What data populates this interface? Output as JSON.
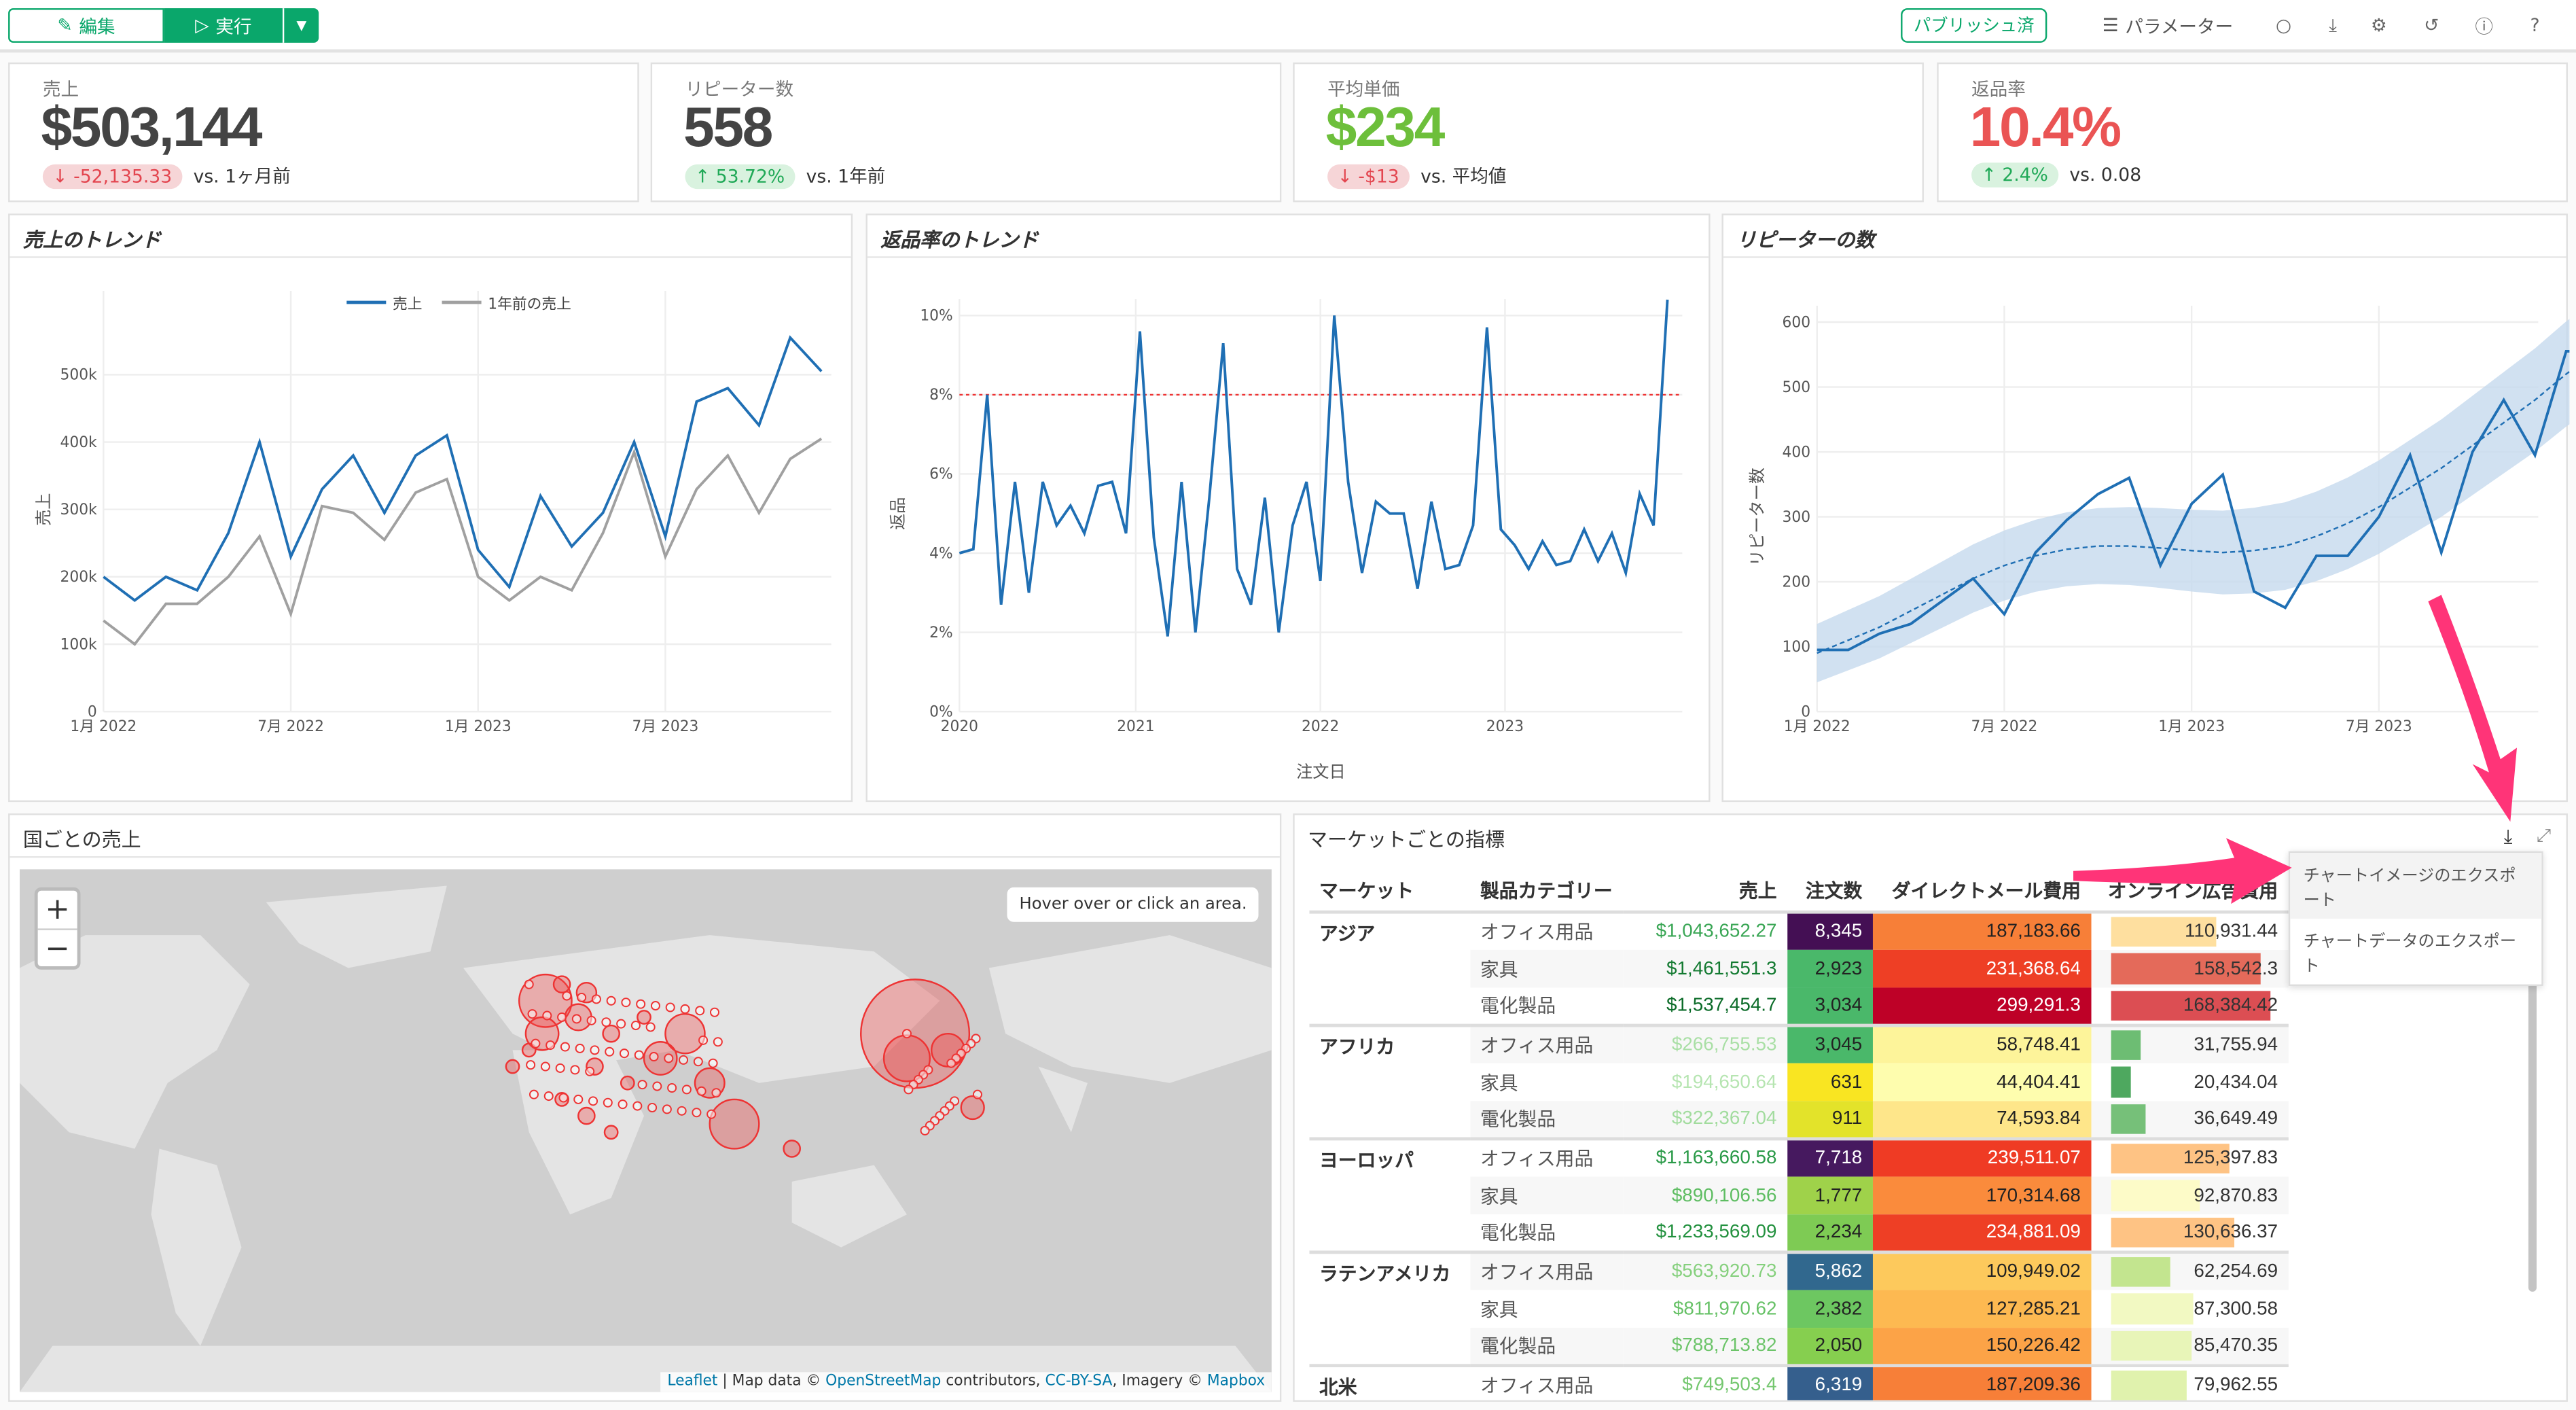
{
  "toolbar": {
    "edit": "編集",
    "run": "実行",
    "published": "パブリッシュ済",
    "parameters": "パラメーター",
    "icons": [
      "comment-icon",
      "download-icon",
      "gear-icon",
      "history-icon",
      "info-icon",
      "help-icon"
    ]
  },
  "kpis": [
    {
      "label": "売上",
      "value": "$503,144",
      "value_color": "#444444",
      "delta": "-52,135.33",
      "dir": "down",
      "compare": "vs. 1ヶ月前"
    },
    {
      "label": "リピーター数",
      "value": "558",
      "value_color": "#444444",
      "delta": "53.72%",
      "dir": "up",
      "compare": "vs. 1年前"
    },
    {
      "label": "平均単価",
      "value": "$234",
      "value_color": "#6dbf3b",
      "delta": "-$13",
      "dir": "down",
      "compare": "vs. 平均値"
    },
    {
      "label": "返品率",
      "value": "10.4%",
      "value_color": "#ea5454",
      "delta": "2.4%",
      "dir": "up",
      "compare": "vs. 0.08"
    }
  ],
  "chart_data": [
    {
      "type": "line",
      "title": "売上のトレンド",
      "ylabel": "売上",
      "xlabel": "",
      "legend": [
        "売上",
        "1年前の売上"
      ],
      "legend_position": "top",
      "x_ticks": [
        "1月 2022",
        "7月 2022",
        "1月 2023",
        "7月 2023"
      ],
      "y_ticks": [
        "0",
        "100k",
        "200k",
        "300k",
        "400k",
        "500k"
      ],
      "ylim": [
        0,
        600000
      ],
      "series": [
        {
          "name": "売上",
          "color": "#1f6fb4",
          "values": [
            200000,
            165000,
            200000,
            180000,
            265000,
            400000,
            230000,
            330000,
            380000,
            295000,
            380000,
            410000,
            240000,
            185000,
            320000,
            245000,
            295000,
            400000,
            260000,
            460000,
            480000,
            425000,
            555000,
            505000
          ]
        },
        {
          "name": "1年前の売上",
          "color": "#a0a0a0",
          "values": [
            135000,
            100000,
            160000,
            160000,
            200000,
            260000,
            145000,
            305000,
            295000,
            255000,
            325000,
            345000,
            200000,
            165000,
            200000,
            180000,
            265000,
            385000,
            230000,
            330000,
            380000,
            295000,
            375000,
            405000
          ]
        }
      ]
    },
    {
      "type": "line",
      "title": "返品率のトレンド",
      "ylabel": "返品",
      "xlabel": "注文日",
      "x_ticks": [
        "2020",
        "2021",
        "2022",
        "2023"
      ],
      "y_ticks": [
        "0%",
        "2%",
        "4%",
        "6%",
        "8%",
        "10%"
      ],
      "ylim": [
        0,
        10
      ],
      "reference_line": 8,
      "series": [
        {
          "name": "返品率",
          "color": "#1f6fb4",
          "values": [
            4,
            4.1,
            8,
            2.7,
            5.8,
            3,
            5.8,
            4.7,
            5.2,
            4.5,
            5.7,
            5.8,
            4.5,
            9.6,
            4.4,
            1.9,
            5.8,
            2,
            5.4,
            9.3,
            3.6,
            2.7,
            5.4,
            2,
            4.7,
            5.8,
            3.3,
            10,
            5.8,
            3.5,
            5.3,
            5,
            5,
            3.1,
            5.3,
            3.6,
            3.7,
            4.7,
            9.7,
            4.6,
            4.2,
            3.6,
            4.3,
            3.7,
            3.8,
            4.6,
            3.8,
            4.5,
            3.5,
            5.5,
            4.7,
            10.4
          ]
        }
      ]
    },
    {
      "type": "line",
      "title": "リピーターの数",
      "ylabel": "リピーター数",
      "xlabel": "",
      "x_ticks": [
        "1月 2022",
        "7月 2022",
        "1月 2023",
        "7月 2023"
      ],
      "y_ticks": [
        "0",
        "100",
        "200",
        "300",
        "400",
        "500",
        "600"
      ],
      "ylim": [
        0,
        600
      ],
      "series": [
        {
          "name": "リピーター数",
          "color": "#1f6fb4",
          "values": [
            95,
            95,
            120,
            135,
            170,
            205,
            150,
            245,
            295,
            335,
            360,
            225,
            320,
            365,
            185,
            160,
            240,
            240,
            300,
            395,
            245,
            400,
            480,
            395,
            555,
            555
          ]
        },
        {
          "name": "trend",
          "color": "#1f6fb4",
          "values": [
            90,
            110,
            130,
            155,
            180,
            205,
            225,
            240,
            250,
            255,
            255,
            252,
            248,
            245,
            248,
            255,
            270,
            290,
            315,
            345,
            375,
            410,
            445,
            480,
            520,
            555
          ]
        }
      ]
    }
  ],
  "map": {
    "title": "国ごとの売上",
    "zoom_in": "+",
    "zoom_out": "−",
    "info": "Hover over or click an area.",
    "attribution": [
      "Leaflet",
      " | Map data © ",
      "OpenStreetMap",
      " contributors, ",
      "CC-BY-SA",
      ", Imagery © ",
      "Mapbox"
    ]
  },
  "table": {
    "title": "マーケットごとの指標",
    "menu": [
      "チャートイメージのエクスポート",
      "チャートデータのエクスポート"
    ],
    "headers": [
      "マーケット",
      "製品カテゴリー",
      "売上",
      "注文数",
      "ダイレクトメール費用",
      "オンライン広告費用"
    ],
    "rows": [
      {
        "market": "アジア",
        "cat": "オフィス用品",
        "sales": "$1,043,652.27",
        "sc": "#3aa655",
        "orders": "8,345",
        "oc": "#440f54",
        "dm": "187,183.66",
        "dc": "#f77f38",
        "on": "110,931.44",
        "ov": 110931,
        "bc": "#fedf9f"
      },
      {
        "market": "",
        "cat": "家具",
        "sales": "$1,461,551.3",
        "sc": "#137a31",
        "orders": "2,923",
        "oc": "#4ab86a",
        "dm": "231,368.64",
        "dc": "#ee3f25",
        "on": "158,542.3",
        "ov": 158542,
        "bc": "#e46a5a"
      },
      {
        "market": "",
        "cat": "電化製品",
        "sales": "$1,537,454.7",
        "sc": "#0b6b28",
        "orders": "3,034",
        "oc": "#4ab86a",
        "dm": "299,291.3",
        "dc": "#be0127",
        "on": "168,384.42",
        "ov": 168384,
        "bc": "#dc4e53"
      },
      {
        "market": "アフリカ",
        "cat": "オフィス用品",
        "sales": "$266,755.53",
        "sc": "#a9dfa5",
        "orders": "3,045",
        "oc": "#4ab86a",
        "dm": "58,748.41",
        "dc": "#fdf49a",
        "on": "31,755.94",
        "ov": 31756,
        "bc": "#6dbd73"
      },
      {
        "market": "",
        "cat": "家具",
        "sales": "$194,650.64",
        "sc": "#b6e5b1",
        "orders": "631",
        "oc": "#f9e522",
        "dm": "44,404.41",
        "dc": "#fefdae",
        "on": "20,434.04",
        "ov": 20434,
        "bc": "#4ea85f"
      },
      {
        "market": "",
        "cat": "電化製品",
        "sales": "$322,367.04",
        "sc": "#a2dc9e",
        "orders": "911",
        "oc": "#e3e32a",
        "dm": "74,593.84",
        "dc": "#fee68a",
        "on": "36,649.49",
        "ov": 36649,
        "bc": "#76c079"
      },
      {
        "market": "ヨーロッパ",
        "cat": "オフィス用品",
        "sales": "$1,163,660.58",
        "sc": "#2a9a48",
        "orders": "7,718",
        "oc": "#46195f",
        "dm": "239,511.07",
        "dc": "#ef3b24",
        "on": "125,397.83",
        "ov": 125398,
        "bc": "#fec384"
      },
      {
        "market": "",
        "cat": "家具",
        "sales": "$890,106.56",
        "sc": "#5ebd62",
        "orders": "1,777",
        "oc": "#9fd24a",
        "dm": "170,314.68",
        "dc": "#fa8b3c",
        "on": "92,870.83",
        "ov": 92871,
        "bc": "#fdfbc8"
      },
      {
        "market": "",
        "cat": "電化製品",
        "sales": "$1,233,569.09",
        "sc": "#23913f",
        "orders": "2,234",
        "oc": "#7ecb54",
        "dm": "234,881.09",
        "dc": "#ee3f25",
        "on": "130,636.37",
        "ov": 130636,
        "bc": "#fec384"
      },
      {
        "market": "ラテンアメリカ",
        "cat": "オフィス用品",
        "sales": "$563,920.73",
        "sc": "#86d07e",
        "orders": "5,862",
        "oc": "#31688e",
        "dm": "109,949.02",
        "dc": "#fdc95c",
        "on": "62,254.69",
        "ov": 62255,
        "bc": "#c3e58f"
      },
      {
        "market": "",
        "cat": "家具",
        "sales": "$811,970.62",
        "sc": "#66c166",
        "orders": "2,382",
        "oc": "#6dc761",
        "dm": "127,285.21",
        "dc": "#fdb951",
        "on": "87,300.58",
        "ov": 87301,
        "bc": "#f2f9c2"
      },
      {
        "market": "",
        "cat": "電化製品",
        "sales": "$788,713.82",
        "sc": "#6cc469",
        "orders": "2,050",
        "oc": "#86cf4f",
        "dm": "150,226.42",
        "dc": "#fca347",
        "on": "85,470.35",
        "ov": 85470,
        "bc": "#e8f5b8"
      },
      {
        "market": "北米",
        "cat": "オフィス用品",
        "sales": "$749,503.4",
        "sc": "#74c76f",
        "orders": "6,319",
        "oc": "#355f8d",
        "dm": "187,209.36",
        "dc": "#f77f38",
        "on": "79,962.55",
        "ov": 79963,
        "bc": "#e0f2ad"
      }
    ]
  }
}
